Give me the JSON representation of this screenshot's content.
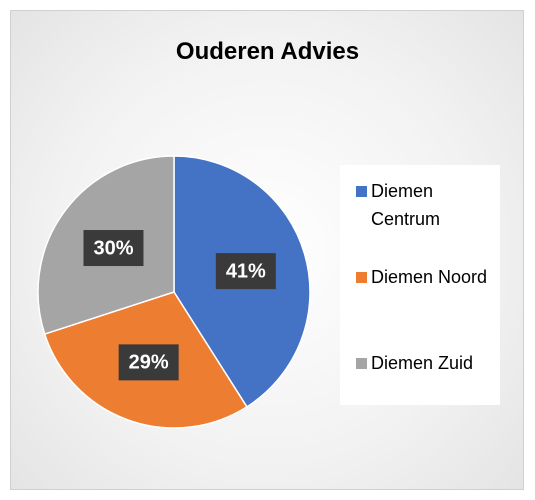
{
  "chart_data": {
    "type": "pie",
    "title": "Ouderen Advies",
    "categories": [
      "Diemen Centrum",
      "Diemen Noord",
      "Diemen Zuid"
    ],
    "values": [
      41,
      29,
      30
    ],
    "value_labels": [
      "41%",
      "29%",
      "30%"
    ],
    "colors": [
      "#4472c4",
      "#ed7d31",
      "#a5a5a5"
    ],
    "legend": "right"
  }
}
